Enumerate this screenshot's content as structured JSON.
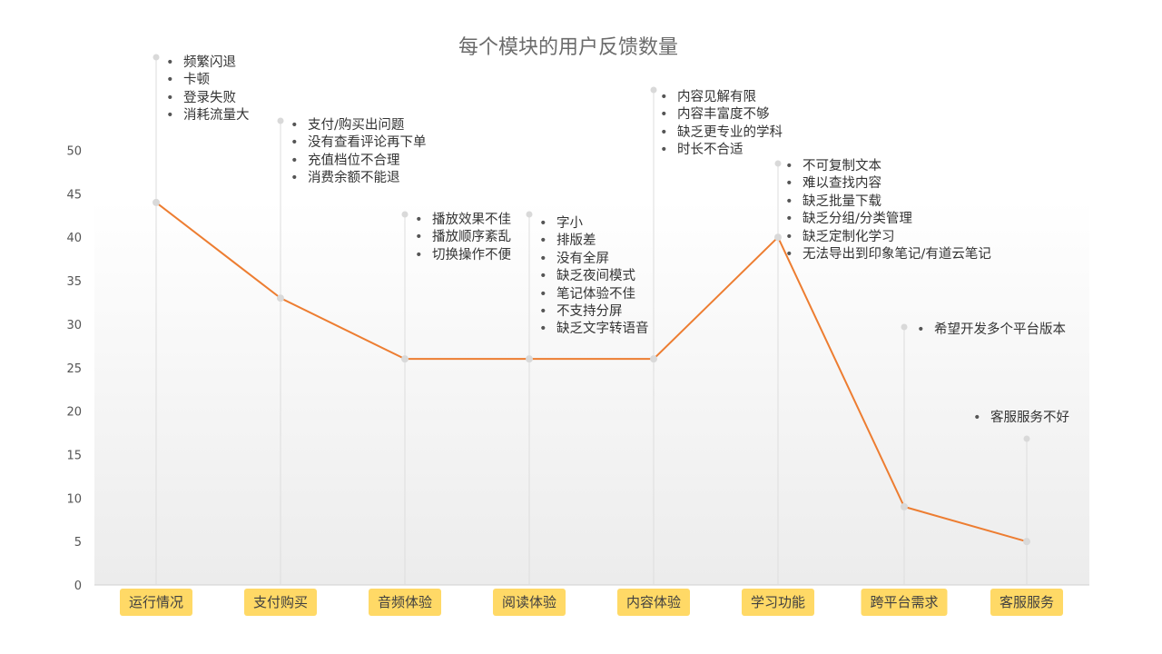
{
  "chart_data": {
    "type": "line",
    "title": "每个模块的用户反馈数量",
    "categories": [
      "运行情况",
      "支付购买",
      "音频体验",
      "阅读体验",
      "内容体验",
      "学习功能",
      "跨平台需求",
      "客服服务"
    ],
    "values": [
      44,
      33,
      26,
      26,
      26,
      40,
      9,
      5
    ],
    "ylim": [
      0,
      50
    ],
    "yticks": [
      "0",
      "5",
      "10",
      "15",
      "20",
      "25",
      "30",
      "35",
      "40",
      "45",
      "50"
    ],
    "grid": false,
    "line_color": "#ed7d31",
    "label_bg_color": "#ffd966",
    "annotations": [
      {
        "category": "运行情况",
        "items": [
          "频繁闪退",
          "卡顿",
          "登录失败",
          "消耗流量大"
        ]
      },
      {
        "category": "支付购买",
        "items": [
          "支付/购买出问题",
          "没有查看评论再下单",
          "充值档位不合理",
          "消费余额不能退"
        ]
      },
      {
        "category": "音频体验",
        "items": [
          "播放效果不佳",
          "播放顺序紊乱",
          "切换操作不便"
        ]
      },
      {
        "category": "阅读体验",
        "items": [
          "字小",
          "排版差",
          "没有全屏",
          "缺乏夜间模式",
          "笔记体验不佳",
          "不支持分屏",
          "缺乏文字转语音"
        ]
      },
      {
        "category": "内容体验",
        "items": [
          "内容见解有限",
          "内容丰富度不够",
          "缺乏更专业的学科",
          "时长不合适"
        ]
      },
      {
        "category": "学习功能",
        "items": [
          "不可复制文本",
          "难以查找内容",
          "缺乏批量下载",
          "缺乏分组/分类管理",
          "缺乏定制化学习",
          "无法导出到印象笔记/有道云笔记"
        ]
      },
      {
        "category": "跨平台需求",
        "items": [
          "希望开发多个平台版本"
        ]
      },
      {
        "category": "客服服务",
        "items": [
          "客服服务不好"
        ]
      }
    ]
  }
}
